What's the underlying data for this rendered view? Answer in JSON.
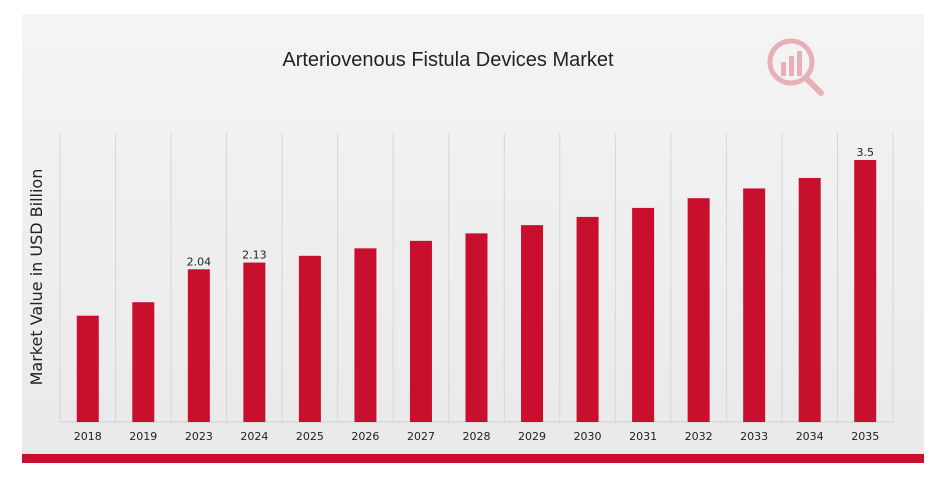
{
  "chart_data": {
    "type": "bar",
    "title": "Arteriovenous Fistula Devices Market",
    "xlabel": "",
    "ylabel": "Market Value in USD Billion",
    "categories": [
      "2018",
      "2019",
      "2023",
      "2024",
      "2025",
      "2026",
      "2027",
      "2028",
      "2029",
      "2030",
      "2031",
      "2032",
      "2033",
      "2034",
      "2035"
    ],
    "values": [
      1.42,
      1.6,
      2.04,
      2.13,
      2.22,
      2.32,
      2.42,
      2.52,
      2.63,
      2.74,
      2.86,
      2.99,
      3.12,
      3.26,
      3.5
    ],
    "data_labels": {
      "2023": "2.04",
      "2024": "2.13",
      "2035": "3.5"
    },
    "ylim": [
      0,
      3.5
    ],
    "grid": "vertical",
    "legend": "none",
    "bar_color": "#c8102e"
  },
  "colors": {
    "accent": "#c8102e",
    "watermark": "#e7b0b6"
  },
  "watermark_icon": "chart-magnifier-logo-icon"
}
